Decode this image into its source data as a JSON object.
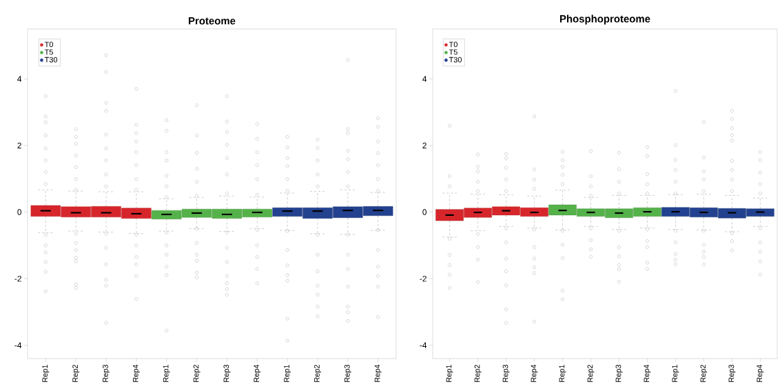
{
  "chart_data": [
    {
      "type": "box",
      "title": "Proteome",
      "categories": [
        "Rep1",
        "Rep2",
        "Rep3",
        "Rep4",
        "Rep1",
        "Rep2",
        "Rep3",
        "Rep4",
        "Rep1",
        "Rep2",
        "Rep3",
        "Rep4"
      ],
      "ylim": [
        -4.4,
        5.5
      ],
      "yticks": [
        -4,
        -2,
        0,
        2,
        4
      ],
      "legend": "top left",
      "series": [
        {
          "name": "T0",
          "color": "#d7262b",
          "boxes": [
            {
              "low": -0.62,
              "q1": -0.13,
              "median": 0.04,
              "q3": 0.2,
              "high": 0.67,
              "outliers": [
                3.48,
                2.87,
                2.7,
                2.3,
                1.91,
                1.55,
                1.2,
                0.84,
                -0.68,
                -1.0,
                -1.21,
                -1.5,
                -1.79,
                -2.38
              ]
            },
            {
              "low": -0.57,
              "q1": -0.15,
              "median": -0.02,
              "q3": 0.16,
              "high": 0.63,
              "outliers": [
                2.49,
                2.26,
                2.05,
                1.7,
                1.35,
                0.99,
                0.67,
                -0.65,
                -0.93,
                -1.14,
                -1.37,
                -1.48,
                -2.17,
                -2.28
              ]
            },
            {
              "low": -0.6,
              "q1": -0.15,
              "median": -0.02,
              "q3": 0.17,
              "high": 0.61,
              "outliers": [
                4.71,
                4.21,
                3.28,
                3.04,
                2.33,
                1.91,
                1.55,
                1.13,
                0.77,
                -0.65,
                -1.07,
                -1.57,
                -2.03,
                -2.21,
                -3.33
              ]
            },
            {
              "low": -0.64,
              "q1": -0.19,
              "median": -0.05,
              "q3": 0.12,
              "high": 0.61,
              "outliers": [
                3.7,
                2.62,
                2.37,
                2.12,
                1.8,
                1.41,
                0.99,
                0.67,
                -0.68,
                -1.0,
                -1.35,
                -1.57,
                -1.92,
                -2.61
              ]
            },
            null,
            null,
            null,
            null,
            null,
            null,
            null,
            null
          ]
        },
        {
          "name": "T5",
          "color": "#55b24a",
          "boxes": [
            null,
            null,
            null,
            null,
            {
              "low": -0.57,
              "q1": -0.21,
              "median": -0.07,
              "q3": 0.05,
              "high": 0.4,
              "outliers": [
                2.76,
                2.44,
                1.8,
                1.55,
                1.09,
                0.77,
                0.45,
                -0.61,
                -1.0,
                -1.28,
                -1.64,
                -1.89,
                -3.56
              ]
            },
            {
              "low": -0.5,
              "q1": -0.16,
              "median": -0.03,
              "q3": 0.09,
              "high": 0.44,
              "outliers": [
                3.21,
                2.3,
                1.78,
                1.3,
                0.91,
                0.49,
                -0.5,
                -0.93,
                -1.28,
                -1.46,
                -1.82,
                -1.96
              ]
            },
            {
              "low": -0.58,
              "q1": -0.19,
              "median": -0.07,
              "q3": 0.09,
              "high": 0.48,
              "outliers": [
                3.48,
                2.72,
                2.4,
                2.02,
                1.62,
                1.13,
                0.56,
                -0.61,
                -1.07,
                -1.5,
                -1.92,
                -2.13,
                -2.31,
                -2.48
              ]
            },
            {
              "low": -0.5,
              "q1": -0.15,
              "median": -0.01,
              "q3": 0.09,
              "high": 0.45,
              "outliers": [
                2.65,
                2.2,
                1.8,
                1.41,
                0.99,
                0.52,
                -0.54,
                -1.0,
                -1.35,
                -1.71,
                -2.14
              ]
            },
            null,
            null,
            null,
            null
          ]
        },
        {
          "name": "T30",
          "color": "#22418f",
          "boxes": [
            null,
            null,
            null,
            null,
            null,
            null,
            null,
            null,
            {
              "low": -0.55,
              "q1": -0.13,
              "median": 0.03,
              "q3": 0.13,
              "high": 0.57,
              "outliers": [
                2.26,
                1.94,
                1.62,
                1.38,
                0.99,
                0.64,
                -0.57,
                -1.14,
                -1.6,
                -1.89,
                -2.06,
                -3.2,
                -3.86
              ]
            },
            {
              "low": -0.65,
              "q1": -0.19,
              "median": 0.03,
              "q3": 0.13,
              "high": 0.62,
              "outliers": [
                2.18,
                1.92,
                1.55,
                1.13,
                0.77,
                -0.68,
                -1.28,
                -1.78,
                -2.21,
                -2.48,
                -2.84,
                -3.13
              ]
            },
            {
              "low": -0.67,
              "q1": -0.17,
              "median": 0.05,
              "q3": 0.16,
              "high": 0.67,
              "outliers": [
                4.57,
                2.49,
                2.37,
                1.84,
                1.59,
                1.2,
                0.77,
                -0.68,
                -1.28,
                -1.71,
                -2.24,
                -2.84,
                -3.01,
                -3.27
              ]
            },
            {
              "low": -0.55,
              "q1": -0.11,
              "median": 0.05,
              "q3": 0.17,
              "high": 0.59,
              "outliers": [
                2.82,
                2.56,
                2.12,
                1.77,
                1.41,
                0.99,
                0.64,
                -0.54,
                -1.14,
                -1.64,
                -1.92,
                -2.24,
                -3.15
              ]
            }
          ]
        }
      ]
    },
    {
      "type": "box",
      "title": "Phosphoproteome",
      "categories": [
        "Rep1",
        "Rep2",
        "Rep3",
        "Rep4",
        "Rep1",
        "Rep2",
        "Rep3",
        "Rep4",
        "Rep1",
        "Rep2",
        "Rep3",
        "Rep4"
      ],
      "ylim": [
        -4.4,
        5.5
      ],
      "yticks": [
        -4,
        -2,
        0,
        2,
        4
      ],
      "legend": "top left",
      "series": [
        {
          "name": "T0",
          "color": "#d7262b",
          "boxes": [
            {
              "low": -0.75,
              "q1": -0.26,
              "median": -0.09,
              "q3": 0.08,
              "high": 0.57,
              "outliers": [
                2.59,
                1.08,
                0.77,
                -0.8,
                -1.29,
                -1.59,
                -1.88,
                -2.28
              ]
            },
            {
              "low": -0.56,
              "q1": -0.16,
              "median": -0.01,
              "q3": 0.12,
              "high": 0.54,
              "outliers": [
                1.73,
                1.36,
                1.22,
                0.91,
                0.63,
                -0.66,
                -1.05,
                -1.43,
                -2.1
              ]
            },
            {
              "low": -0.43,
              "q1": -0.09,
              "median": 0.04,
              "q3": 0.16,
              "high": 0.52,
              "outliers": [
                1.75,
                1.61,
                1.33,
                0.98,
                0.63,
                -0.49,
                -0.91,
                -1.4,
                -1.78,
                -2.2,
                -2.92,
                -3.33
              ]
            },
            {
              "low": -0.48,
              "q1": -0.13,
              "median": -0.01,
              "q3": 0.13,
              "high": 0.48,
              "outliers": [
                2.87,
                1.28,
                0.98,
                0.7,
                -0.52,
                -1.05,
                -1.4,
                -1.66,
                -1.83,
                -3.29
              ]
            },
            null,
            null,
            null,
            null,
            null,
            null,
            null,
            null
          ]
        },
        {
          "name": "T5",
          "color": "#55b24a",
          "boxes": [
            null,
            null,
            null,
            null,
            {
              "low": -0.54,
              "q1": -0.09,
              "median": 0.05,
              "q3": 0.22,
              "high": 0.66,
              "outliers": [
                1.81,
                1.56,
                1.36,
                1.12,
                0.84,
                -0.56,
                -0.98,
                -1.38,
                -2.36,
                -2.62
              ]
            },
            {
              "low": -0.43,
              "q1": -0.13,
              "median": -0.01,
              "q3": 0.1,
              "high": 0.44,
              "outliers": [
                1.83,
                1.08,
                0.77,
                0.49,
                -0.49,
                -0.84,
                -1.12,
                -1.34
              ]
            },
            {
              "low": -0.52,
              "q1": -0.17,
              "median": -0.03,
              "q3": 0.1,
              "high": 0.5,
              "outliers": [
                1.78,
                1.29,
                0.91,
                0.56,
                -0.56,
                -1.05,
                -1.33,
                -1.59,
                -1.72,
                -2.09
              ]
            },
            {
              "low": -0.48,
              "q1": -0.13,
              "median": 0.01,
              "q3": 0.13,
              "high": 0.5,
              "outliers": [
                1.95,
                1.68,
                1.14,
                0.84,
                0.56,
                -0.52,
                -0.87,
                -1.05,
                -1.52,
                -1.71
              ]
            },
            null,
            null,
            null,
            null
          ]
        },
        {
          "name": "T30",
          "color": "#22418f",
          "boxes": [
            null,
            null,
            null,
            null,
            null,
            null,
            null,
            null,
            {
              "low": -0.52,
              "q1": -0.13,
              "median": 0.01,
              "q3": 0.14,
              "high": 0.52,
              "outliers": [
                3.64,
                2.01,
                1.57,
                1.26,
                0.91,
                0.56,
                -0.56,
                -0.91,
                -1.26,
                -1.43,
                -1.57
              ]
            },
            {
              "low": -0.54,
              "q1": -0.15,
              "median": -0.01,
              "q3": 0.13,
              "high": 0.54,
              "outliers": [
                2.7,
                1.64,
                1.22,
                0.98,
                0.63,
                -0.56,
                -0.98,
                -1.19,
                -1.35,
                -1.57
              ]
            },
            {
              "low": -0.59,
              "q1": -0.18,
              "median": -0.02,
              "q3": 0.11,
              "high": 0.5,
              "outliers": [
                3.04,
                2.8,
                2.52,
                2.31,
                2.15,
                1.54,
                1.26,
                0.98,
                0.63,
                -0.64,
                -0.87,
                -1.15
              ]
            },
            {
              "low": -0.43,
              "q1": -0.13,
              "median": 0.0,
              "q3": 0.1,
              "high": 0.42,
              "outliers": [
                1.8,
                1.56,
                1.19,
                0.84,
                0.56,
                -0.49,
                -0.91,
                -1.19,
                -1.48,
                -1.88
              ]
            }
          ]
        }
      ]
    }
  ]
}
